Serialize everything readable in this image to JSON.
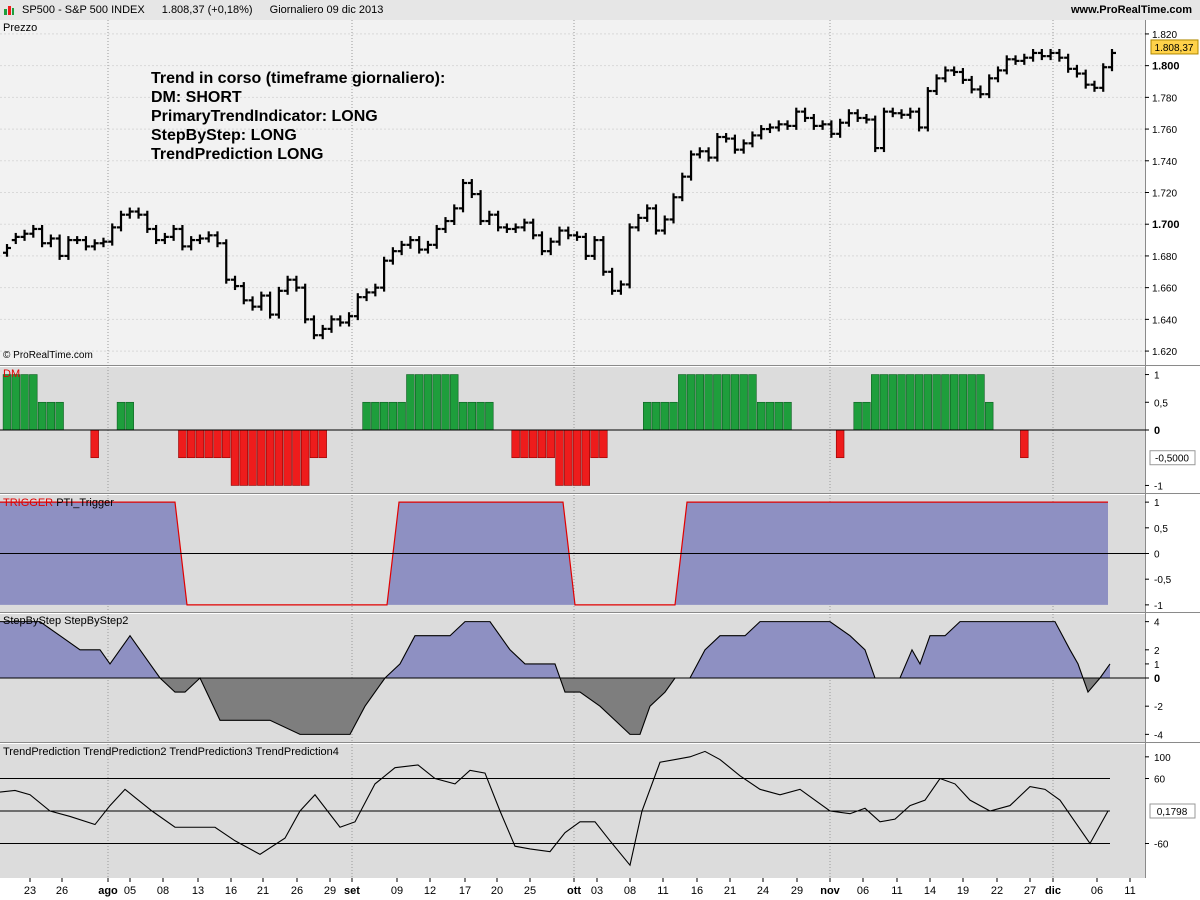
{
  "title_bar": {
    "symbol": "SP500 - S&P 500 INDEX",
    "quote": "1.808,37 (+0,18%)",
    "period": "Giornaliero  09 dic 2013",
    "site": "www.ProRealTime.com"
  },
  "colors": {
    "background_top": "#f2f2f2",
    "panel_bg": "#dcdcdc",
    "bull": "#1e9e3c",
    "bear": "#ee1c1c",
    "area_fill": "#8e90c2",
    "area_fill_negative": "#7e7e7e",
    "trigger_line": "#e10000",
    "last_price_box": "#ffd24a"
  },
  "price_panel": {
    "label": "Prezzo",
    "copyright": "© ProRealTime.com",
    "annotation": [
      "Trend in corso (timeframe giornaliero):",
      "DM: SHORT",
      "PrimaryTrendIndicator: LONG",
      "StepByStep: LONG",
      "TrendPrediction LONG"
    ],
    "last_price_label": "1.808,37"
  },
  "dm_panel": {
    "label_name": "DM",
    "last_value_label": "-0,5000"
  },
  "trigger_panel": {
    "label_name": "TRIGGER",
    "label_series": "PTI_Trigger"
  },
  "sbs_panel": {
    "label": "StepByStep StepByStep2"
  },
  "tp_panel": {
    "label": "TrendPrediction TrendPrediction2 TrendPrediction3 TrendPrediction4",
    "last_value_label": "0,1798"
  },
  "chart_data": [
    {
      "type": "ohlc",
      "name": "Prezzo",
      "ylim": [
        1615,
        1825
      ],
      "yticks": [
        "1.620",
        "1.640",
        "1.660",
        "1.680",
        "1.700",
        "1.720",
        "1.740",
        "1.760",
        "1.780",
        "1.800",
        "1.820"
      ],
      "ytick_values": [
        1620,
        1640,
        1660,
        1680,
        1700,
        1720,
        1740,
        1760,
        1780,
        1800,
        1820
      ],
      "x_tick_labels": [
        "23",
        "26",
        "ago",
        "05",
        "08",
        "13",
        "16",
        "21",
        "26",
        "29",
        "set",
        "09",
        "12",
        "17",
        "20",
        "25",
        "ott",
        "03",
        "08",
        "11",
        "16",
        "21",
        "24",
        "29",
        "nov",
        "06",
        "11",
        "14",
        "19",
        "22",
        "27",
        "dic",
        "06",
        "11"
      ],
      "close": [
        1685,
        1692,
        1694,
        1697,
        1688,
        1691,
        1680,
        1690,
        1690,
        1686,
        1688,
        1689,
        1698,
        1706,
        1708,
        1706,
        1697,
        1690,
        1692,
        1697,
        1686,
        1690,
        1691,
        1693,
        1688,
        1665,
        1661,
        1652,
        1648,
        1655,
        1643,
        1658,
        1665,
        1660,
        1640,
        1630,
        1634,
        1640,
        1638,
        1642,
        1654,
        1657,
        1660,
        1677,
        1683,
        1687,
        1690,
        1684,
        1687,
        1697,
        1702,
        1710,
        1726,
        1719,
        1702,
        1706,
        1698,
        1697,
        1698,
        1701,
        1693,
        1683,
        1689,
        1696,
        1693,
        1692,
        1680,
        1690,
        1670,
        1658,
        1662,
        1698,
        1704,
        1710,
        1696,
        1703,
        1717,
        1730,
        1744,
        1746,
        1742,
        1755,
        1754,
        1747,
        1751,
        1756,
        1760,
        1761,
        1763,
        1762,
        1771,
        1767,
        1762,
        1763,
        1757,
        1764,
        1770,
        1767,
        1766,
        1748,
        1771,
        1770,
        1769,
        1771,
        1761,
        1784,
        1792,
        1797,
        1796,
        1791,
        1785,
        1782,
        1792,
        1797,
        1804,
        1803,
        1805,
        1808,
        1806,
        1808,
        1805,
        1798,
        1795,
        1788,
        1786,
        1799,
        1808
      ],
      "open": [
        1682,
        1690,
        1692,
        1694,
        1697,
        1688,
        1691,
        1680,
        1690,
        1690,
        1686,
        1688,
        1689,
        1698,
        1706,
        1708,
        1706,
        1697,
        1690,
        1692,
        1697,
        1686,
        1690,
        1691,
        1693,
        1688,
        1665,
        1661,
        1652,
        1648,
        1655,
        1643,
        1658,
        1665,
        1660,
        1640,
        1630,
        1634,
        1640,
        1638,
        1642,
        1654,
        1657,
        1660,
        1677,
        1683,
        1687,
        1690,
        1684,
        1687,
        1697,
        1702,
        1710,
        1726,
        1719,
        1702,
        1706,
        1698,
        1697,
        1698,
        1701,
        1693,
        1683,
        1689,
        1696,
        1693,
        1692,
        1680,
        1690,
        1670,
        1658,
        1662,
        1698,
        1704,
        1710,
        1696,
        1703,
        1717,
        1730,
        1744,
        1746,
        1742,
        1755,
        1754,
        1747,
        1751,
        1756,
        1760,
        1761,
        1763,
        1762,
        1771,
        1767,
        1762,
        1763,
        1757,
        1764,
        1770,
        1767,
        1766,
        1748,
        1771,
        1770,
        1769,
        1771,
        1761,
        1784,
        1792,
        1797,
        1796,
        1791,
        1785,
        1782,
        1792,
        1797,
        1804,
        1803,
        1805,
        1808,
        1806,
        1808,
        1805,
        1798,
        1795,
        1788,
        1786,
        1799
      ]
    },
    {
      "type": "bar",
      "name": "DM",
      "ylim": [
        -1.1,
        1.1
      ],
      "yticks": [
        "1",
        "0,5",
        "0",
        "-1"
      ],
      "ytick_values": [
        1,
        0.5,
        0,
        -1
      ],
      "values": [
        1,
        1,
        1,
        1,
        0.5,
        0.5,
        0.5,
        0,
        0,
        0,
        -0.5,
        0,
        0,
        0.5,
        0.5,
        0,
        0,
        0,
        0,
        0,
        -0.5,
        -0.5,
        -0.5,
        -0.5,
        -0.5,
        -0.5,
        -1,
        -1,
        -1,
        -1,
        -1,
        -1,
        -1,
        -1,
        -1,
        -0.5,
        -0.5,
        0,
        0,
        0,
        0,
        0.5,
        0.5,
        0.5,
        0.5,
        0.5,
        1,
        1,
        1,
        1,
        1,
        1,
        0.5,
        0.5,
        0.5,
        0.5,
        0,
        0,
        -0.5,
        -0.5,
        -0.5,
        -0.5,
        -0.5,
        -1,
        -1,
        -1,
        -1,
        -0.5,
        -0.5,
        0,
        0,
        0,
        0,
        0.5,
        0.5,
        0.5,
        0.5,
        1,
        1,
        1,
        1,
        1,
        1,
        1,
        1,
        1,
        0.5,
        0.5,
        0.5,
        0.5,
        0,
        0,
        0,
        0,
        0,
        -0.5,
        0,
        0.5,
        0.5,
        1,
        1,
        1,
        1,
        1,
        1,
        1,
        1,
        1,
        1,
        1,
        1,
        1,
        0.5,
        0,
        0,
        0,
        -0.5
      ]
    },
    {
      "type": "area",
      "name": "PTI_Trigger",
      "ylim": [
        -1.1,
        1.1
      ],
      "yticks": [
        "1",
        "0,5",
        "0",
        "-0,5",
        "-1"
      ],
      "ytick_values": [
        1,
        0.5,
        0,
        -0.5,
        -1
      ],
      "x": [
        0,
        175,
        187,
        387,
        399,
        563,
        575,
        675,
        687,
        1108
      ],
      "values": [
        1,
        1,
        -1,
        -1,
        1,
        1,
        -1,
        -1,
        1,
        1
      ]
    },
    {
      "type": "area",
      "name": "StepByStep",
      "ylim": [
        -4.4,
        4.4
      ],
      "yticks": [
        "4",
        "2",
        "1",
        "0",
        "-2",
        "-4"
      ],
      "ytick_values": [
        4,
        2,
        1,
        0,
        -2,
        -4
      ],
      "x": [
        0,
        20,
        40,
        60,
        80,
        100,
        110,
        120,
        130,
        150,
        160,
        175,
        185,
        200,
        220,
        250,
        270,
        300,
        320,
        350,
        365,
        385,
        400,
        415,
        430,
        450,
        465,
        490,
        510,
        525,
        540,
        555,
        565,
        580,
        600,
        615,
        630,
        640,
        650,
        665,
        675,
        690,
        705,
        720,
        745,
        760,
        780,
        810,
        830,
        850,
        865,
        875,
        900,
        912,
        920,
        930,
        945,
        960,
        990,
        1010,
        1040,
        1055,
        1070,
        1078,
        1088,
        1100,
        1110
      ],
      "values": [
        4,
        4,
        4,
        3,
        2,
        2,
        1,
        2,
        3,
        1,
        0,
        -1,
        -1,
        0,
        -3,
        -3,
        -3,
        -4,
        -4,
        -4,
        -2,
        0,
        1,
        3,
        3,
        3,
        4,
        4,
        2,
        1,
        1,
        1,
        -1,
        -1,
        -2,
        -3,
        -4,
        -4,
        -2,
        -1,
        0,
        0,
        2,
        3,
        3,
        4,
        4,
        4,
        4,
        3,
        2,
        0,
        0,
        2,
        1,
        3,
        3,
        4,
        4,
        4,
        4,
        4,
        2,
        1,
        -1,
        0,
        1
      ]
    },
    {
      "type": "line",
      "name": "TrendPrediction",
      "ylim": [
        -120,
        120
      ],
      "yticks": [
        "100",
        "60",
        "-60"
      ],
      "ytick_values": [
        100,
        60,
        -60
      ],
      "guide_lines": [
        60,
        0,
        -60
      ],
      "x": [
        0,
        15,
        30,
        50,
        70,
        95,
        110,
        125,
        135,
        152,
        175,
        195,
        215,
        235,
        260,
        285,
        300,
        315,
        340,
        355,
        375,
        395,
        418,
        435,
        455,
        470,
        485,
        500,
        515,
        530,
        550,
        565,
        580,
        595,
        610,
        630,
        642,
        660,
        675,
        690,
        705,
        720,
        740,
        760,
        780,
        800,
        815,
        830,
        850,
        865,
        880,
        895,
        910,
        925,
        940,
        955,
        970,
        990,
        1010,
        1030,
        1045,
        1060,
        1075,
        1090,
        1108
      ],
      "values": [
        35,
        38,
        30,
        0,
        -10,
        -25,
        10,
        40,
        25,
        0,
        -30,
        -30,
        -30,
        -55,
        -80,
        -50,
        0,
        30,
        -30,
        -20,
        50,
        80,
        85,
        60,
        50,
        75,
        70,
        0,
        -65,
        -70,
        -75,
        -40,
        -20,
        -20,
        -55,
        -100,
        0,
        90,
        95,
        100,
        110,
        95,
        65,
        40,
        30,
        40,
        20,
        0,
        -5,
        5,
        -20,
        -15,
        10,
        20,
        60,
        50,
        20,
        0,
        10,
        45,
        40,
        20,
        -20,
        -60,
        0
      ]
    }
  ]
}
